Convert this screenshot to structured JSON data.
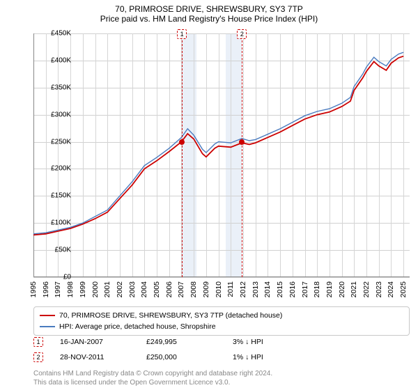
{
  "title": "70, PRIMROSE DRIVE, SHREWSBURY, SY3 7TP",
  "subtitle": "Price paid vs. HM Land Registry's House Price Index (HPI)",
  "chart": {
    "type": "line",
    "x_years": [
      1995,
      1996,
      1997,
      1998,
      1999,
      2000,
      2001,
      2002,
      2003,
      2004,
      2005,
      2006,
      2007,
      2008,
      2009,
      2010,
      2011,
      2012,
      2013,
      2014,
      2015,
      2016,
      2017,
      2018,
      2019,
      2020,
      2021,
      2022,
      2023,
      2024,
      2025
    ],
    "xlim": [
      1995,
      2025.5
    ],
    "ylim": [
      0,
      450000
    ],
    "ytick_step": 50000,
    "yticks_labels": [
      "£0",
      "£50K",
      "£100K",
      "£150K",
      "£200K",
      "£250K",
      "£300K",
      "£350K",
      "£400K",
      "£450K"
    ],
    "grid_color": "#d0d0d0",
    "background_color": "#ffffff",
    "shade_color": "#eaf0f8",
    "series": [
      {
        "name": "property",
        "label": "70, PRIMROSE DRIVE, SHREWSBURY, SY3 7TP (detached house)",
        "color": "#cc0000",
        "line_width": 1.8,
        "points": [
          [
            1995,
            78000
          ],
          [
            1996,
            80000
          ],
          [
            1997,
            85000
          ],
          [
            1998,
            90000
          ],
          [
            1999,
            98000
          ],
          [
            2000,
            108000
          ],
          [
            2001,
            120000
          ],
          [
            2002,
            145000
          ],
          [
            2003,
            170000
          ],
          [
            2004,
            200000
          ],
          [
            2005,
            215000
          ],
          [
            2006,
            232000
          ],
          [
            2007,
            250000
          ],
          [
            2007.5,
            265000
          ],
          [
            2008,
            255000
          ],
          [
            2008.7,
            228000
          ],
          [
            2009,
            222000
          ],
          [
            2009.7,
            238000
          ],
          [
            2010,
            242000
          ],
          [
            2011,
            240000
          ],
          [
            2011.9,
            248000
          ],
          [
            2012.5,
            245000
          ],
          [
            2013,
            248000
          ],
          [
            2014,
            258000
          ],
          [
            2015,
            268000
          ],
          [
            2016,
            280000
          ],
          [
            2017,
            292000
          ],
          [
            2018,
            300000
          ],
          [
            2019,
            305000
          ],
          [
            2020,
            315000
          ],
          [
            2020.7,
            325000
          ],
          [
            2021,
            345000
          ],
          [
            2021.7,
            368000
          ],
          [
            2022,
            380000
          ],
          [
            2022.6,
            398000
          ],
          [
            2023,
            390000
          ],
          [
            2023.6,
            382000
          ],
          [
            2024,
            395000
          ],
          [
            2024.6,
            405000
          ],
          [
            2025,
            408000
          ]
        ]
      },
      {
        "name": "hpi",
        "label": "HPI: Average price, detached house, Shropshire",
        "color": "#4a7bbf",
        "line_width": 1.4,
        "points": [
          [
            1995,
            80000
          ],
          [
            1996,
            82000
          ],
          [
            1997,
            87000
          ],
          [
            1998,
            92000
          ],
          [
            1999,
            100000
          ],
          [
            2000,
            112000
          ],
          [
            2001,
            124000
          ],
          [
            2002,
            150000
          ],
          [
            2003,
            176000
          ],
          [
            2004,
            206000
          ],
          [
            2005,
            221000
          ],
          [
            2006,
            238000
          ],
          [
            2007,
            258000
          ],
          [
            2007.5,
            274000
          ],
          [
            2008,
            262000
          ],
          [
            2008.7,
            236000
          ],
          [
            2009,
            230000
          ],
          [
            2009.7,
            246000
          ],
          [
            2010,
            250000
          ],
          [
            2011,
            248000
          ],
          [
            2011.9,
            256000
          ],
          [
            2012.5,
            252000
          ],
          [
            2013,
            254000
          ],
          [
            2014,
            264000
          ],
          [
            2015,
            274000
          ],
          [
            2016,
            286000
          ],
          [
            2017,
            298000
          ],
          [
            2018,
            306000
          ],
          [
            2019,
            311000
          ],
          [
            2020,
            321000
          ],
          [
            2020.7,
            332000
          ],
          [
            2021,
            352000
          ],
          [
            2021.7,
            375000
          ],
          [
            2022,
            388000
          ],
          [
            2022.6,
            406000
          ],
          [
            2023,
            398000
          ],
          [
            2023.6,
            390000
          ],
          [
            2024,
            402000
          ],
          [
            2024.6,
            412000
          ],
          [
            2025,
            415000
          ]
        ]
      }
    ],
    "sale_markers": [
      {
        "n": "1",
        "year": 2007.04,
        "price": 249995,
        "color": "#cc0000"
      },
      {
        "n": "2",
        "year": 2011.91,
        "price": 250000,
        "color": "#cc0000"
      }
    ],
    "shade_ranges": [
      {
        "from": 2007.04,
        "to": 2008.2
      },
      {
        "from": 2010.6,
        "to": 2011.91
      }
    ]
  },
  "legend": {
    "rows": [
      {
        "color": "#cc0000",
        "label_path": "chart.series.0.label"
      },
      {
        "color": "#4a7bbf",
        "label_path": "chart.series.1.label"
      }
    ]
  },
  "sales_table": [
    {
      "n": "1",
      "color": "#cc0000",
      "date": "16-JAN-2007",
      "price": "£249,995",
      "delta": "3% ↓ HPI"
    },
    {
      "n": "2",
      "color": "#cc0000",
      "date": "28-NOV-2011",
      "price": "£250,000",
      "delta": "1% ↓ HPI"
    }
  ],
  "footer": {
    "line1": "Contains HM Land Registry data © Crown copyright and database right 2024.",
    "line2": "This data is licensed under the Open Government Licence v3.0."
  }
}
